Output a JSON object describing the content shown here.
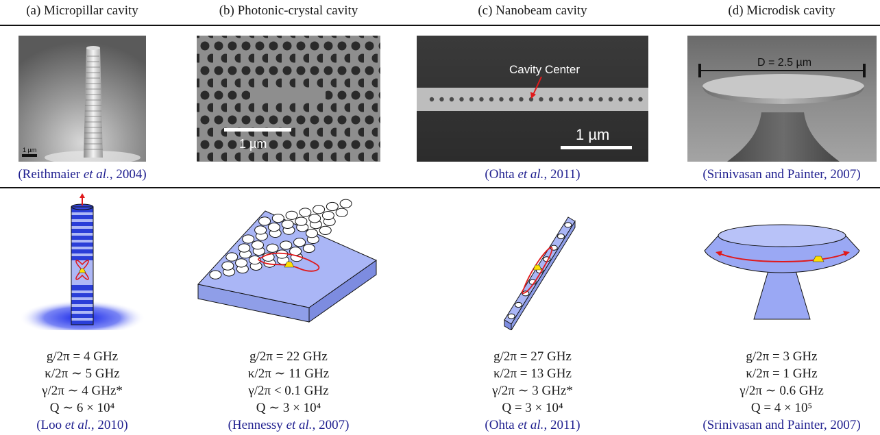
{
  "panels": [
    {
      "header": "(a) Micropillar cavity",
      "scale_label": "1 µm",
      "image_citation": {
        "pre": "(Reithmaier ",
        "etal": "et al.",
        "post": ", 2004)"
      },
      "params": [
        "g/2π = 4 GHz",
        "κ/2π ∼ 5 GHz",
        "γ/2π ∼ 4 GHz*",
        "Q ∼ 6 × 10⁴"
      ],
      "param_citation": {
        "pre": "(Loo ",
        "etal": "et al.",
        "post": ", 2010)"
      }
    },
    {
      "header": "(b) Photonic-crystal cavity",
      "scale_label": "1 µm",
      "params": [
        "g/2π = 22 GHz",
        "κ/2π ∼ 11 GHz",
        "γ/2π < 0.1 GHz",
        "Q ∼ 3 × 10⁴"
      ],
      "param_citation": {
        "pre": "(Hennessy ",
        "etal": "et al.",
        "post": ", 2007)"
      }
    },
    {
      "header": "(c) Nanobeam cavity",
      "annotation": "Cavity Center",
      "scale_label": "1 µm",
      "image_citation": {
        "pre": "(Ohta ",
        "etal": "et al.",
        "post": ", 2011)"
      },
      "params": [
        "g/2π = 27 GHz",
        "κ/2π = 13 GHz",
        "γ/2π ∼ 3 GHz*",
        "Q = 3 × 10⁴"
      ],
      "param_citation": {
        "pre": "(Ohta ",
        "etal": "et al.",
        "post": ", 2011)"
      }
    },
    {
      "header": "(d) Microdisk cavity",
      "dimension_label": "D = 2.5 µm",
      "image_citation": {
        "pre": "(Srinivasan and Painter, 2007)"
      },
      "params": [
        "g/2π = 3 GHz",
        "κ/2π = 1 GHz",
        "γ/2π ∼ 0.6 GHz",
        "Q = 4 × 10⁵"
      ],
      "param_citation": {
        "pre": "(Srinivasan and Painter, 2007)"
      }
    }
  ],
  "colors": {
    "citation": "#1f1f8f",
    "device_blue": "#9aa8f4",
    "pillar_blue": "#2a3ed8",
    "mode_red": "#e0191b",
    "emitter_yellow": "#ffe000"
  }
}
